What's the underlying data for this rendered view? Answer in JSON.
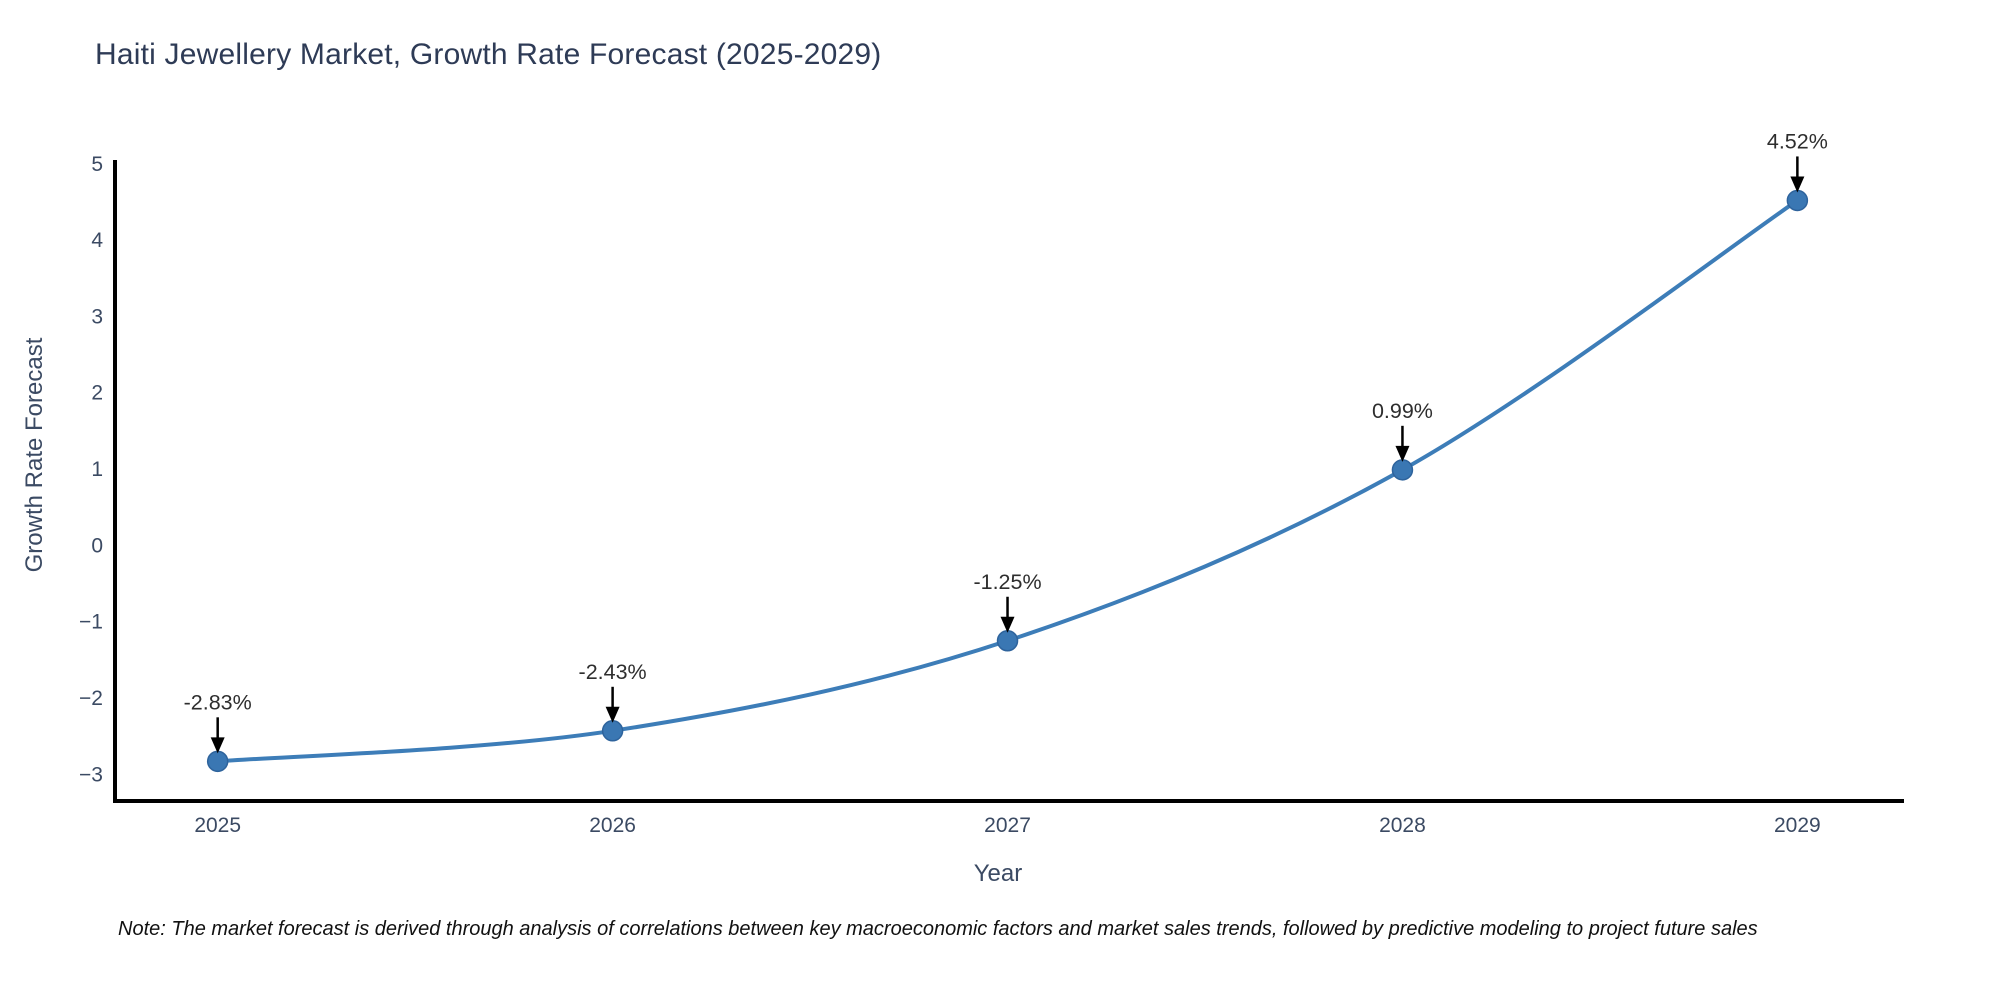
{
  "title": "Haiti Jewellery Market, Growth Rate Forecast (2025-2029)",
  "footnote": "Note: The market forecast is derived through analysis of correlations between key macroeconomic factors and market sales trends, followed by predictive modeling to project future sales",
  "chart_data": {
    "type": "line",
    "title": "Haiti Jewellery Market, Growth Rate Forecast (2025-2029)",
    "x": [
      2025,
      2026,
      2027,
      2028,
      2029
    ],
    "series": [
      {
        "name": "Growth Rate Forecast",
        "values": [
          -2.83,
          -2.43,
          -1.25,
          0.99,
          4.52
        ]
      }
    ],
    "point_labels": [
      "-2.83%",
      "-2.43%",
      "-1.25%",
      "0.99%",
      "4.52%"
    ],
    "xlabel": "Year",
    "ylabel": "Growth Rate Forecast",
    "xtick_labels": [
      "2025",
      "2026",
      "2027",
      "2028",
      "2029"
    ],
    "ytick_values": [
      5,
      4,
      3,
      2,
      1,
      0,
      -1,
      -2,
      -3
    ],
    "ytick_labels": [
      "5",
      "4",
      "3",
      "2",
      "1",
      "0",
      "−1",
      "−2",
      "−3"
    ],
    "xlim": [
      2024.74,
      2029.27
    ],
    "ylim": [
      -3.35,
      5.05
    ],
    "grid": false,
    "legend_position": "none",
    "annotation_offset_note": "labels sit above points with downward black arrows",
    "colors": {
      "line": "#3d7db8",
      "marker": "#3a77b3",
      "marker_edge": "#2e639c",
      "annotation_text": "#2e2e2e",
      "arrow": "#000000",
      "axis_spine": "#000000",
      "tick_label": "#3b4a63",
      "axis_title": "#3b4a63",
      "chart_title": "#2e3b56",
      "background": "#ffffff"
    }
  }
}
